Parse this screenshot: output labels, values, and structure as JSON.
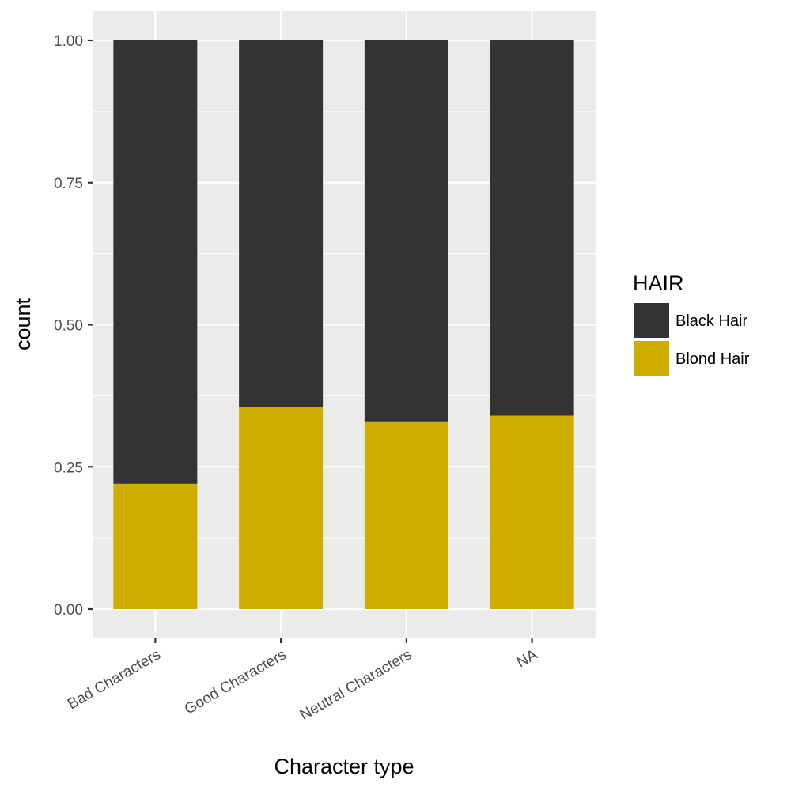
{
  "chart_data": {
    "type": "bar",
    "stacked": true,
    "position": "fill",
    "categories": [
      "Bad Characters",
      "Good Characters",
      "Neutral Characters",
      "NA"
    ],
    "series": [
      {
        "name": "Black Hair",
        "values": [
          0.78,
          0.645,
          0.67,
          0.66
        ]
      },
      {
        "name": "Blond Hair",
        "values": [
          0.22,
          0.355,
          0.33,
          0.34
        ]
      }
    ],
    "xlabel": "Character type",
    "ylabel": "count",
    "ylim": [
      0,
      1
    ],
    "y_ticks": [
      "0.00",
      "0.25",
      "0.50",
      "0.75",
      "1.00"
    ],
    "grid": true,
    "legend": {
      "title": "HAIR",
      "placement": "right",
      "items": [
        "Black Hair",
        "Blond Hair"
      ]
    },
    "colors": {
      "Black Hair": "#333333",
      "Blond Hair": "#CCAD00",
      "panel_background": "#EBEBEB",
      "grid": "#FFFFFF"
    }
  }
}
